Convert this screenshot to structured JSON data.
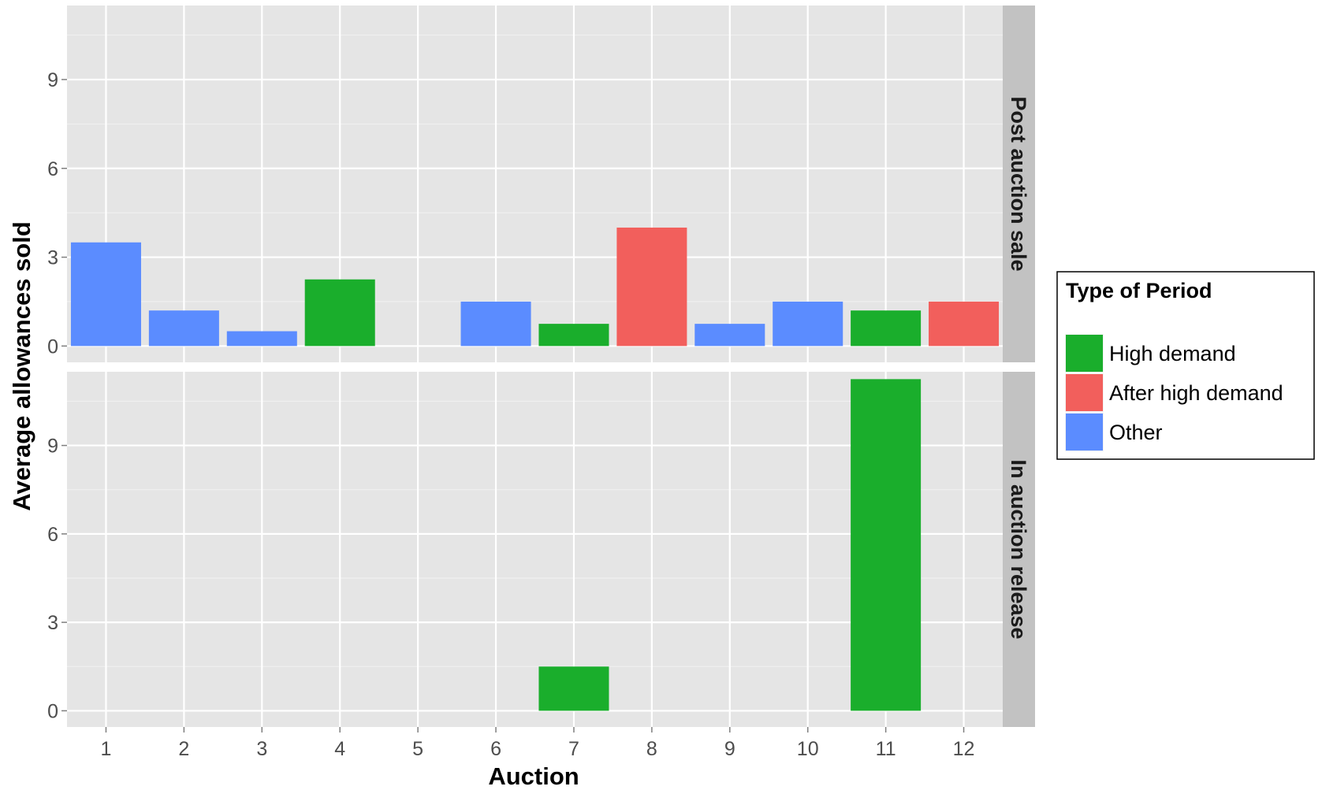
{
  "chart_data": {
    "type": "bar",
    "xlabel": "Auction",
    "ylabel": "Average allowances sold",
    "categories": [
      "1",
      "2",
      "3",
      "4",
      "5",
      "6",
      "7",
      "8",
      "9",
      "10",
      "11",
      "12"
    ],
    "yticks": [
      0,
      3,
      6,
      9
    ],
    "ylim": [
      -0.55,
      11.5
    ],
    "grid": true,
    "legend": {
      "title": "Type of Period",
      "position": "right",
      "entries": [
        {
          "label": "High demand",
          "color": "#1aae2c"
        },
        {
          "label": "After high demand",
          "color": "#f25f5c"
        },
        {
          "label": "Other",
          "color": "#5b8cff"
        }
      ]
    },
    "panels": [
      {
        "strip": "Post auction sale",
        "values": [
          3.5,
          1.2,
          0.5,
          2.25,
          0,
          1.5,
          0.75,
          4.0,
          0.75,
          1.5,
          1.2,
          1.5
        ],
        "types": [
          "Other",
          "Other",
          "Other",
          "High demand",
          "Other",
          "Other",
          "High demand",
          "After high demand",
          "Other",
          "Other",
          "High demand",
          "After high demand"
        ]
      },
      {
        "strip": "In auction release",
        "values": [
          0,
          0,
          0,
          0,
          0,
          0,
          1.5,
          0,
          0,
          0,
          11.25,
          0
        ],
        "types": [
          "Other",
          "Other",
          "Other",
          "High demand",
          "Other",
          "Other",
          "High demand",
          "After high demand",
          "Other",
          "Other",
          "High demand",
          "After high demand"
        ]
      }
    ]
  }
}
